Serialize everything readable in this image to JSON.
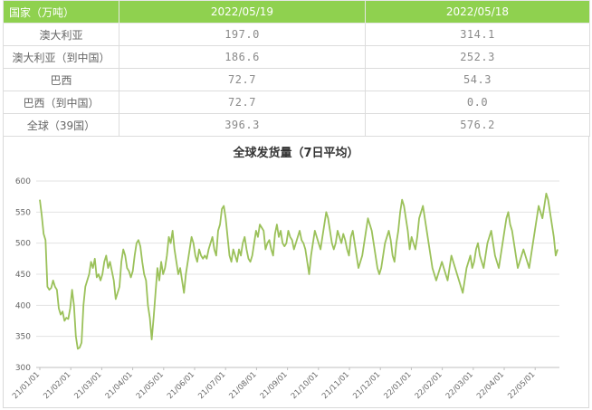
{
  "table": {
    "headers": [
      "国家（万吨）",
      "2022/05/19",
      "2022/05/18"
    ],
    "rows": [
      {
        "label": "澳大利亚",
        "v1": "197.0",
        "v2": "314.1"
      },
      {
        "label": "澳大利亚（到中国）",
        "v1": "186.6",
        "v2": "252.3"
      },
      {
        "label": "巴西",
        "v1": "72.7",
        "v2": "54.3"
      },
      {
        "label": "巴西（到中国）",
        "v1": "72.7",
        "v2": "0.0"
      },
      {
        "label": "全球（39国）",
        "v1": "396.3",
        "v2": "576.2"
      }
    ]
  },
  "chart_data": {
    "type": "line",
    "title": "全球发货量（7日平均）",
    "xlabel": "",
    "ylabel": "",
    "ylim": [
      300,
      600
    ],
    "yticks": [
      300,
      350,
      400,
      450,
      500,
      550,
      600
    ],
    "xticks": [
      "21/01/01",
      "21/02/01",
      "21/03/01",
      "21/04/01",
      "21/05/01",
      "21/06/01",
      "21/07/01",
      "21/08/01",
      "21/09/01",
      "21/10/01",
      "21/11/01",
      "21/12/01",
      "22/01/01",
      "22/02/01",
      "22/03/01",
      "22/04/01",
      "22/05/01"
    ],
    "grid": "horizontal",
    "line_color": "#9bc15a",
    "series": [
      {
        "values": [
          570,
          545,
          515,
          505,
          430,
          425,
          428,
          440,
          430,
          425,
          395,
          385,
          390,
          375,
          380,
          378,
          395,
          425,
          400,
          350,
          330,
          332,
          340,
          400,
          430,
          440,
          450,
          470,
          460,
          475,
          445,
          450,
          440,
          450,
          470,
          480,
          460,
          470,
          455,
          440,
          410,
          420,
          430,
          470,
          490,
          480,
          460,
          455,
          445,
          455,
          480,
          500,
          505,
          495,
          470,
          450,
          440,
          400,
          380,
          345,
          380,
          420,
          460,
          440,
          470,
          450,
          460,
          480,
          510,
          500,
          520,
          490,
          470,
          450,
          460,
          440,
          420,
          450,
          470,
          490,
          510,
          500,
          480,
          470,
          490,
          480,
          475,
          480,
          475,
          490,
          500,
          510,
          490,
          480,
          520,
          530,
          555,
          560,
          540,
          510,
          480,
          470,
          490,
          480,
          470,
          490,
          480,
          500,
          510,
          490,
          475,
          470,
          480,
          500,
          520,
          510,
          530,
          525,
          520,
          490,
          500,
          505,
          490,
          480,
          515,
          530,
          510,
          520,
          500,
          495,
          500,
          520,
          510,
          505,
          490,
          500,
          510,
          520,
          505,
          500,
          490,
          470,
          450,
          480,
          500,
          520,
          510,
          500,
          490,
          510,
          530,
          550,
          540,
          520,
          500,
          490,
          500,
          520,
          510,
          500,
          515,
          505,
          490,
          480,
          510,
          520,
          500,
          480,
          460,
          470,
          480,
          500,
          520,
          540,
          530,
          520,
          500,
          480,
          460,
          450,
          460,
          480,
          500,
          510,
          520,
          505,
          480,
          470,
          500,
          520,
          550,
          570,
          560,
          540,
          520,
          490,
          510,
          500,
          490,
          510,
          540,
          550,
          560,
          540,
          520,
          500,
          480,
          460,
          450,
          440,
          450,
          460,
          470,
          460,
          450,
          440,
          460,
          480,
          470,
          460,
          450,
          440,
          430,
          420,
          440,
          460,
          470,
          480,
          460,
          470,
          490,
          500,
          480,
          470,
          460,
          480,
          500,
          510,
          520,
          500,
          480,
          470,
          460,
          480,
          500,
          520,
          540,
          550,
          530,
          520,
          500,
          480,
          460,
          470,
          480,
          490,
          480,
          470,
          460,
          480,
          500,
          520,
          540,
          560,
          550,
          540,
          560,
          580,
          570,
          550,
          530,
          510,
          480,
          490
        ]
      }
    ]
  }
}
